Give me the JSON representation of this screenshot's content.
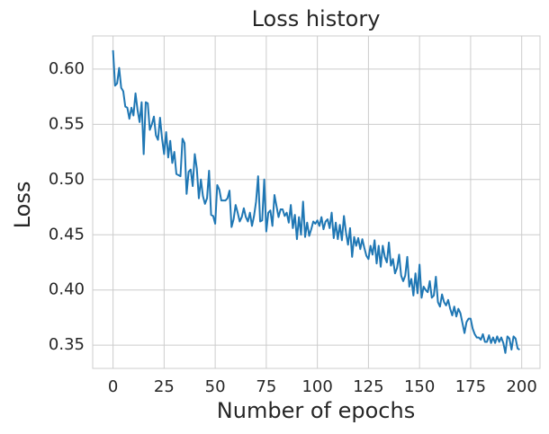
{
  "chart_data": {
    "type": "line",
    "title": "Loss history",
    "x_label": "Number of epochs",
    "y_label": "Loss",
    "x": [
      0,
      1,
      2,
      3,
      4,
      5,
      6,
      7,
      8,
      9,
      10,
      11,
      12,
      13,
      14,
      15,
      16,
      17,
      18,
      19,
      20,
      21,
      22,
      23,
      24,
      25,
      26,
      27,
      28,
      29,
      30,
      31,
      32,
      33,
      34,
      35,
      36,
      37,
      38,
      39,
      40,
      41,
      42,
      43,
      44,
      45,
      46,
      47,
      48,
      49,
      50,
      51,
      52,
      53,
      54,
      55,
      56,
      57,
      58,
      59,
      60,
      61,
      62,
      63,
      64,
      65,
      66,
      67,
      68,
      69,
      70,
      71,
      72,
      73,
      74,
      75,
      76,
      77,
      78,
      79,
      80,
      81,
      82,
      83,
      84,
      85,
      86,
      87,
      88,
      89,
      90,
      91,
      92,
      93,
      94,
      95,
      96,
      97,
      98,
      99,
      100,
      101,
      102,
      103,
      104,
      105,
      106,
      107,
      108,
      109,
      110,
      111,
      112,
      113,
      114,
      115,
      116,
      117,
      118,
      119,
      120,
      121,
      122,
      123,
      124,
      125,
      126,
      127,
      128,
      129,
      130,
      131,
      132,
      133,
      134,
      135,
      136,
      137,
      138,
      139,
      140,
      141,
      142,
      143,
      144,
      145,
      146,
      147,
      148,
      149,
      150,
      151,
      152,
      153,
      154,
      155,
      156,
      157,
      158,
      159,
      160,
      161,
      162,
      163,
      164,
      165,
      166,
      167,
      168,
      169,
      170,
      171,
      172,
      173,
      174,
      175,
      176,
      177,
      178,
      179,
      180,
      181,
      182,
      183,
      184,
      185,
      186,
      187,
      188,
      189,
      190,
      191,
      192,
      193,
      194,
      195,
      196,
      197,
      198,
      199
    ],
    "series": [
      {
        "color": "#1f77b4",
        "values": [
          0.617,
          0.585,
          0.587,
          0.601,
          0.583,
          0.58,
          0.566,
          0.565,
          0.555,
          0.565,
          0.558,
          0.578,
          0.563,
          0.552,
          0.57,
          0.523,
          0.57,
          0.569,
          0.545,
          0.55,
          0.557,
          0.54,
          0.536,
          0.556,
          0.537,
          0.523,
          0.543,
          0.52,
          0.535,
          0.515,
          0.525,
          0.505,
          0.504,
          0.503,
          0.537,
          0.533,
          0.487,
          0.507,
          0.509,
          0.494,
          0.523,
          0.51,
          0.483,
          0.5,
          0.485,
          0.478,
          0.483,
          0.508,
          0.468,
          0.467,
          0.46,
          0.495,
          0.491,
          0.481,
          0.481,
          0.481,
          0.483,
          0.49,
          0.457,
          0.464,
          0.477,
          0.47,
          0.462,
          0.466,
          0.474,
          0.466,
          0.462,
          0.47,
          0.458,
          0.467,
          0.48,
          0.503,
          0.462,
          0.463,
          0.5,
          0.453,
          0.47,
          0.472,
          0.458,
          0.486,
          0.476,
          0.466,
          0.473,
          0.473,
          0.467,
          0.47,
          0.461,
          0.477,
          0.456,
          0.468,
          0.446,
          0.466,
          0.45,
          0.48,
          0.448,
          0.461,
          0.449,
          0.455,
          0.462,
          0.46,
          0.463,
          0.458,
          0.466,
          0.455,
          0.462,
          0.464,
          0.456,
          0.47,
          0.447,
          0.461,
          0.446,
          0.459,
          0.445,
          0.467,
          0.452,
          0.441,
          0.456,
          0.43,
          0.448,
          0.44,
          0.447,
          0.437,
          0.446,
          0.438,
          0.431,
          0.428,
          0.44,
          0.432,
          0.445,
          0.424,
          0.44,
          0.421,
          0.44,
          0.43,
          0.425,
          0.443,
          0.422,
          0.428,
          0.415,
          0.42,
          0.432,
          0.413,
          0.408,
          0.413,
          0.43,
          0.403,
          0.41,
          0.395,
          0.415,
          0.397,
          0.423,
          0.393,
          0.403,
          0.4,
          0.398,
          0.408,
          0.393,
          0.395,
          0.412,
          0.389,
          0.385,
          0.396,
          0.389,
          0.386,
          0.391,
          0.383,
          0.377,
          0.385,
          0.376,
          0.383,
          0.379,
          0.37,
          0.361,
          0.371,
          0.374,
          0.374,
          0.365,
          0.36,
          0.357,
          0.357,
          0.355,
          0.36,
          0.353,
          0.353,
          0.359,
          0.352,
          0.357,
          0.352,
          0.358,
          0.353,
          0.357,
          0.352,
          0.343,
          0.358,
          0.356,
          0.346,
          0.358,
          0.356,
          0.347,
          0.346
        ]
      }
    ],
    "xlim": [
      -9.95,
      208.95
    ],
    "ylim": [
      0.329,
      0.63
    ],
    "xticks": [
      0,
      25,
      50,
      75,
      100,
      125,
      150,
      175,
      200
    ],
    "yticks": [
      {
        "value": 0.35,
        "label": "0.35"
      },
      {
        "value": 0.4,
        "label": "0.40"
      },
      {
        "value": 0.45,
        "label": "0.45"
      },
      {
        "value": 0.5,
        "label": "0.50"
      },
      {
        "value": 0.55,
        "label": "0.55"
      },
      {
        "value": 0.6,
        "label": "0.60"
      }
    ],
    "grid": true
  }
}
